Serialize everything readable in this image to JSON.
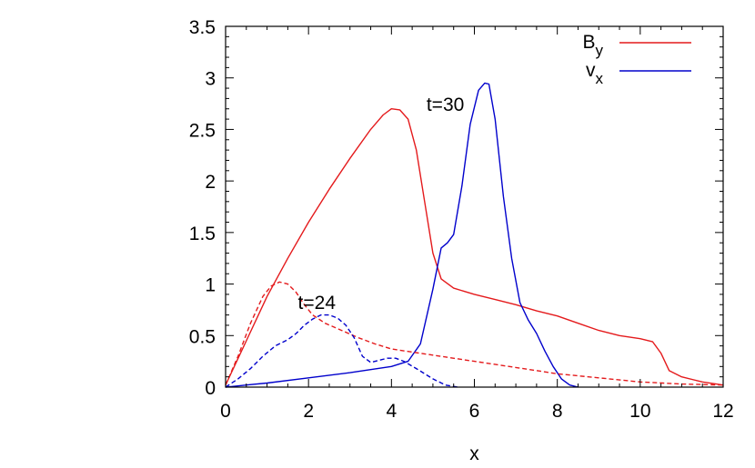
{
  "chart_data": {
    "type": "line",
    "xlabel": "x",
    "ylabel": "",
    "xlim": [
      0,
      12
    ],
    "ylim": [
      0,
      3.5
    ],
    "x_ticks": [
      "0",
      "2",
      "4",
      "6",
      "8",
      "10",
      "12"
    ],
    "y_ticks": [
      "0",
      "0.5",
      "1",
      "1.5",
      "2",
      "2.5",
      "3",
      "3.5"
    ],
    "grid": false,
    "legend_position": "top-right",
    "legend": [
      {
        "label_main": "B",
        "label_sub": "y",
        "color": "#e41a1c"
      },
      {
        "label_main": "v",
        "label_sub": "x",
        "color": "#0000cc"
      }
    ],
    "annotations": [
      {
        "text": "t=30",
        "x": 5.3,
        "y": 2.75
      },
      {
        "text": "t=24",
        "x": 2.2,
        "y": 0.83
      }
    ],
    "series": [
      {
        "name": "By, t=30",
        "color": "#e41a1c",
        "dash": "solid",
        "x": [
          0,
          0.5,
          1,
          1.5,
          2,
          2.5,
          3,
          3.5,
          3.8,
          4.0,
          4.2,
          4.4,
          4.6,
          4.8,
          5.0,
          5.2,
          5.5,
          6.0,
          6.5,
          7.0,
          7.5,
          8.0,
          8.5,
          9.0,
          9.5,
          10.0,
          10.3,
          10.5,
          10.7,
          11.0,
          11.5,
          12
        ],
        "y": [
          0.02,
          0.45,
          0.88,
          1.25,
          1.6,
          1.92,
          2.22,
          2.5,
          2.64,
          2.7,
          2.69,
          2.6,
          2.3,
          1.8,
          1.3,
          1.05,
          0.96,
          0.9,
          0.85,
          0.8,
          0.74,
          0.69,
          0.62,
          0.55,
          0.5,
          0.47,
          0.44,
          0.33,
          0.16,
          0.1,
          0.05,
          0.02
        ]
      },
      {
        "name": "vx, t=30",
        "color": "#0000cc",
        "dash": "solid",
        "x": [
          0,
          0.5,
          1,
          2,
          3,
          3.5,
          4.0,
          4.4,
          4.7,
          5.0,
          5.2,
          5.35,
          5.5,
          5.7,
          5.9,
          6.1,
          6.25,
          6.35,
          6.5,
          6.7,
          6.9,
          7.1,
          7.3,
          7.5,
          7.7,
          7.9,
          8.1,
          8.3,
          8.5
        ],
        "y": [
          0,
          0.02,
          0.04,
          0.09,
          0.14,
          0.17,
          0.2,
          0.25,
          0.42,
          0.95,
          1.35,
          1.4,
          1.48,
          1.95,
          2.55,
          2.88,
          2.95,
          2.94,
          2.6,
          1.85,
          1.25,
          0.82,
          0.65,
          0.52,
          0.35,
          0.2,
          0.08,
          0.02,
          0
        ]
      },
      {
        "name": "By, t=24",
        "color": "#e41a1c",
        "dash": "dashed",
        "x": [
          0,
          0.3,
          0.6,
          0.9,
          1.1,
          1.3,
          1.5,
          1.7,
          1.9,
          2.1,
          2.4,
          2.8,
          3.2,
          3.6,
          4.0,
          5.0,
          6.0,
          7.0,
          8.0,
          9.0,
          10.0,
          11.0,
          12
        ],
        "y": [
          0.02,
          0.3,
          0.62,
          0.88,
          0.98,
          1.02,
          1.0,
          0.92,
          0.8,
          0.7,
          0.62,
          0.55,
          0.48,
          0.42,
          0.37,
          0.31,
          0.25,
          0.19,
          0.13,
          0.09,
          0.05,
          0.03,
          0.02
        ]
      },
      {
        "name": "vx, t=24",
        "color": "#0000cc",
        "dash": "dashed",
        "x": [
          0,
          0.3,
          0.6,
          0.9,
          1.2,
          1.5,
          1.7,
          1.9,
          2.1,
          2.3,
          2.5,
          2.7,
          2.9,
          3.1,
          3.3,
          3.5,
          3.7,
          3.9,
          4.1,
          4.3,
          4.6,
          5.0,
          5.3,
          5.6
        ],
        "y": [
          0,
          0.08,
          0.18,
          0.3,
          0.4,
          0.46,
          0.52,
          0.6,
          0.66,
          0.7,
          0.7,
          0.67,
          0.6,
          0.48,
          0.3,
          0.24,
          0.26,
          0.28,
          0.28,
          0.25,
          0.18,
          0.08,
          0.02,
          0
        ]
      }
    ]
  }
}
